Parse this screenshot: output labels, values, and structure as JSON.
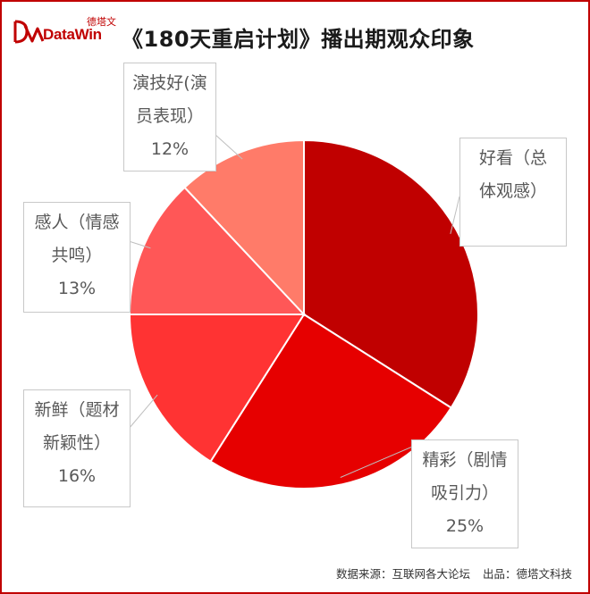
{
  "logo": {
    "cn": "德塔文",
    "en": "DataWin"
  },
  "title": "《180天重启计划》播出期观众印象",
  "chart_data": {
    "type": "pie",
    "title": "《180天重启计划》播出期观众印象",
    "slices": [
      {
        "label_lines": [
          "好看（总",
          "体观感）"
        ],
        "value": 34,
        "percent_label": "",
        "color": "#c00000"
      },
      {
        "label_lines": [
          "精彩（剧情",
          "吸引力）"
        ],
        "value": 25,
        "percent_label": "25%",
        "color": "#e60000"
      },
      {
        "label_lines": [
          "新鲜（题材",
          "新颖性）"
        ],
        "value": 16,
        "percent_label": "16%",
        "color": "#ff3333"
      },
      {
        "label_lines": [
          "感人（情感",
          "共鸣）"
        ],
        "value": 13,
        "percent_label": "13%",
        "color": "#ff5757"
      },
      {
        "label_lines": [
          "演技好(演",
          "员表现）"
        ],
        "value": 12,
        "percent_label": "12%",
        "color": "#ff7b69"
      }
    ]
  },
  "footer": {
    "source": "数据来源：互联网各大论坛",
    "producer": "出品：德塔文科技"
  }
}
